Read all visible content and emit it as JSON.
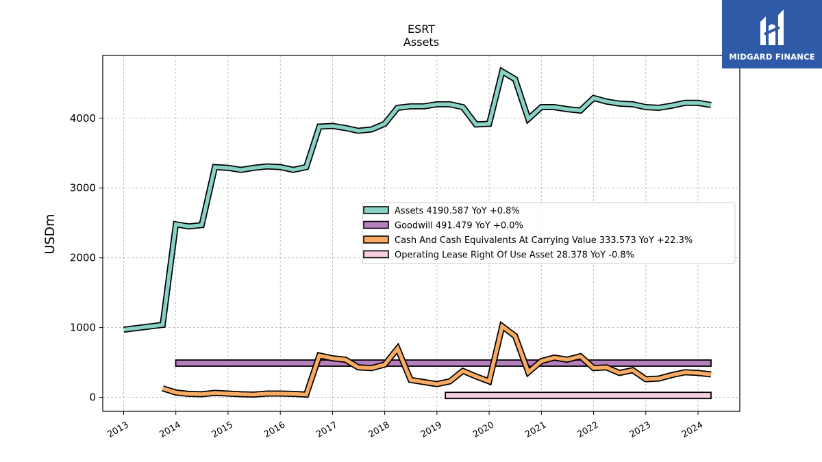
{
  "brand": {
    "name": "MIDGARD FINANCE",
    "logo_icon": "midgard-logo-icon",
    "color": "#2f5aa8"
  },
  "chart_data": {
    "type": "line",
    "title": "ESRT",
    "subtitle": "Assets",
    "ylabel": "USDm",
    "xlabel": "",
    "ylim": [
      -200,
      4900
    ],
    "xlim": [
      2012.6,
      2024.8
    ],
    "grid": true,
    "legend_position": "center-right",
    "x_ticks": [
      "2013",
      "2014",
      "2015",
      "2016",
      "2017",
      "2018",
      "2019",
      "2020",
      "2021",
      "2022",
      "2023",
      "2024"
    ],
    "y_ticks": [
      0,
      1000,
      2000,
      3000,
      4000
    ],
    "series": [
      {
        "name": "Assets",
        "legend": "Assets  4190.587 YoY +0.8%",
        "color": "#88d1c4",
        "style": "line",
        "points": [
          [
            "2013-01-01",
            970
          ],
          [
            "2013-10-01",
            1040
          ],
          [
            "2014-01-01",
            2480
          ],
          [
            "2014-04-01",
            2450
          ],
          [
            "2014-07-01",
            2470
          ],
          [
            "2014-10-01",
            3300
          ],
          [
            "2015-01-01",
            3290
          ],
          [
            "2015-04-01",
            3260
          ],
          [
            "2015-07-01",
            3290
          ],
          [
            "2015-10-01",
            3310
          ],
          [
            "2016-01-01",
            3300
          ],
          [
            "2016-04-01",
            3260
          ],
          [
            "2016-07-01",
            3300
          ],
          [
            "2016-10-01",
            3880
          ],
          [
            "2017-01-01",
            3890
          ],
          [
            "2017-04-01",
            3860
          ],
          [
            "2017-07-01",
            3820
          ],
          [
            "2017-10-01",
            3840
          ],
          [
            "2018-01-01",
            3920
          ],
          [
            "2018-04-01",
            4150
          ],
          [
            "2018-07-01",
            4170
          ],
          [
            "2018-10-01",
            4170
          ],
          [
            "2019-01-01",
            4200
          ],
          [
            "2019-04-01",
            4200
          ],
          [
            "2019-07-01",
            4160
          ],
          [
            "2019-10-01",
            3910
          ],
          [
            "2020-01-01",
            3920
          ],
          [
            "2020-04-01",
            4670
          ],
          [
            "2020-07-01",
            4560
          ],
          [
            "2020-10-01",
            3990
          ],
          [
            "2021-01-01",
            4160
          ],
          [
            "2021-04-01",
            4160
          ],
          [
            "2021-07-01",
            4130
          ],
          [
            "2021-10-01",
            4110
          ],
          [
            "2022-01-01",
            4290
          ],
          [
            "2022-04-01",
            4240
          ],
          [
            "2022-07-01",
            4210
          ],
          [
            "2022-10-01",
            4200
          ],
          [
            "2023-01-01",
            4160
          ],
          [
            "2023-04-01",
            4150
          ],
          [
            "2023-07-01",
            4180
          ],
          [
            "2023-10-01",
            4220
          ],
          [
            "2024-01-01",
            4220
          ],
          [
            "2024-04-01",
            4190
          ]
        ]
      },
      {
        "name": "Goodwill",
        "legend": "Goodwill  491.479 YoY +0.0%",
        "color": "#b67fbd",
        "style": "bar",
        "points": [
          [
            "2013-12-31",
            491.479
          ],
          [
            "2024-04-01",
            491.479
          ]
        ]
      },
      {
        "name": "Cash And Cash Equivalents At Carrying Value",
        "legend": "Cash And Cash Equivalents At Carrying Value  333.573 YoY +22.3%",
        "color": "#f7ab63",
        "style": "line",
        "points": [
          [
            "2013-10-01",
            130
          ],
          [
            "2014-01-01",
            70
          ],
          [
            "2014-04-01",
            50
          ],
          [
            "2014-07-01",
            45
          ],
          [
            "2014-10-01",
            65
          ],
          [
            "2015-01-01",
            55
          ],
          [
            "2015-04-01",
            45
          ],
          [
            "2015-07-01",
            40
          ],
          [
            "2015-10-01",
            55
          ],
          [
            "2016-01-01",
            55
          ],
          [
            "2016-04-01",
            50
          ],
          [
            "2016-07-01",
            40
          ],
          [
            "2016-10-01",
            600
          ],
          [
            "2017-01-01",
            560
          ],
          [
            "2017-04-01",
            540
          ],
          [
            "2017-07-01",
            430
          ],
          [
            "2017-10-01",
            420
          ],
          [
            "2018-01-01",
            470
          ],
          [
            "2018-04-01",
            700
          ],
          [
            "2018-07-01",
            250
          ],
          [
            "2018-10-01",
            220
          ],
          [
            "2019-01-01",
            190
          ],
          [
            "2019-04-01",
            230
          ],
          [
            "2019-07-01",
            380
          ],
          [
            "2019-10-01",
            300
          ],
          [
            "2020-01-01",
            230
          ],
          [
            "2020-04-01",
            1020
          ],
          [
            "2020-07-01",
            880
          ],
          [
            "2020-10-01",
            360
          ],
          [
            "2021-01-01",
            520
          ],
          [
            "2021-04-01",
            570
          ],
          [
            "2021-07-01",
            540
          ],
          [
            "2021-10-01",
            590
          ],
          [
            "2022-01-01",
            420
          ],
          [
            "2022-04-01",
            430
          ],
          [
            "2022-07-01",
            350
          ],
          [
            "2022-10-01",
            390
          ],
          [
            "2023-01-01",
            260
          ],
          [
            "2023-04-01",
            270
          ],
          [
            "2023-07-01",
            320
          ],
          [
            "2023-10-01",
            360
          ],
          [
            "2024-01-01",
            350
          ],
          [
            "2024-04-01",
            330
          ]
        ]
      },
      {
        "name": "Operating Lease Right Of Use Asset",
        "legend": "Operating Lease Right Of Use Asset  28.378 YoY -0.8%",
        "color": "#f9cde0",
        "style": "bar",
        "points": [
          [
            "2019-03-01",
            28.378
          ],
          [
            "2024-04-01",
            28.378
          ]
        ]
      }
    ]
  }
}
